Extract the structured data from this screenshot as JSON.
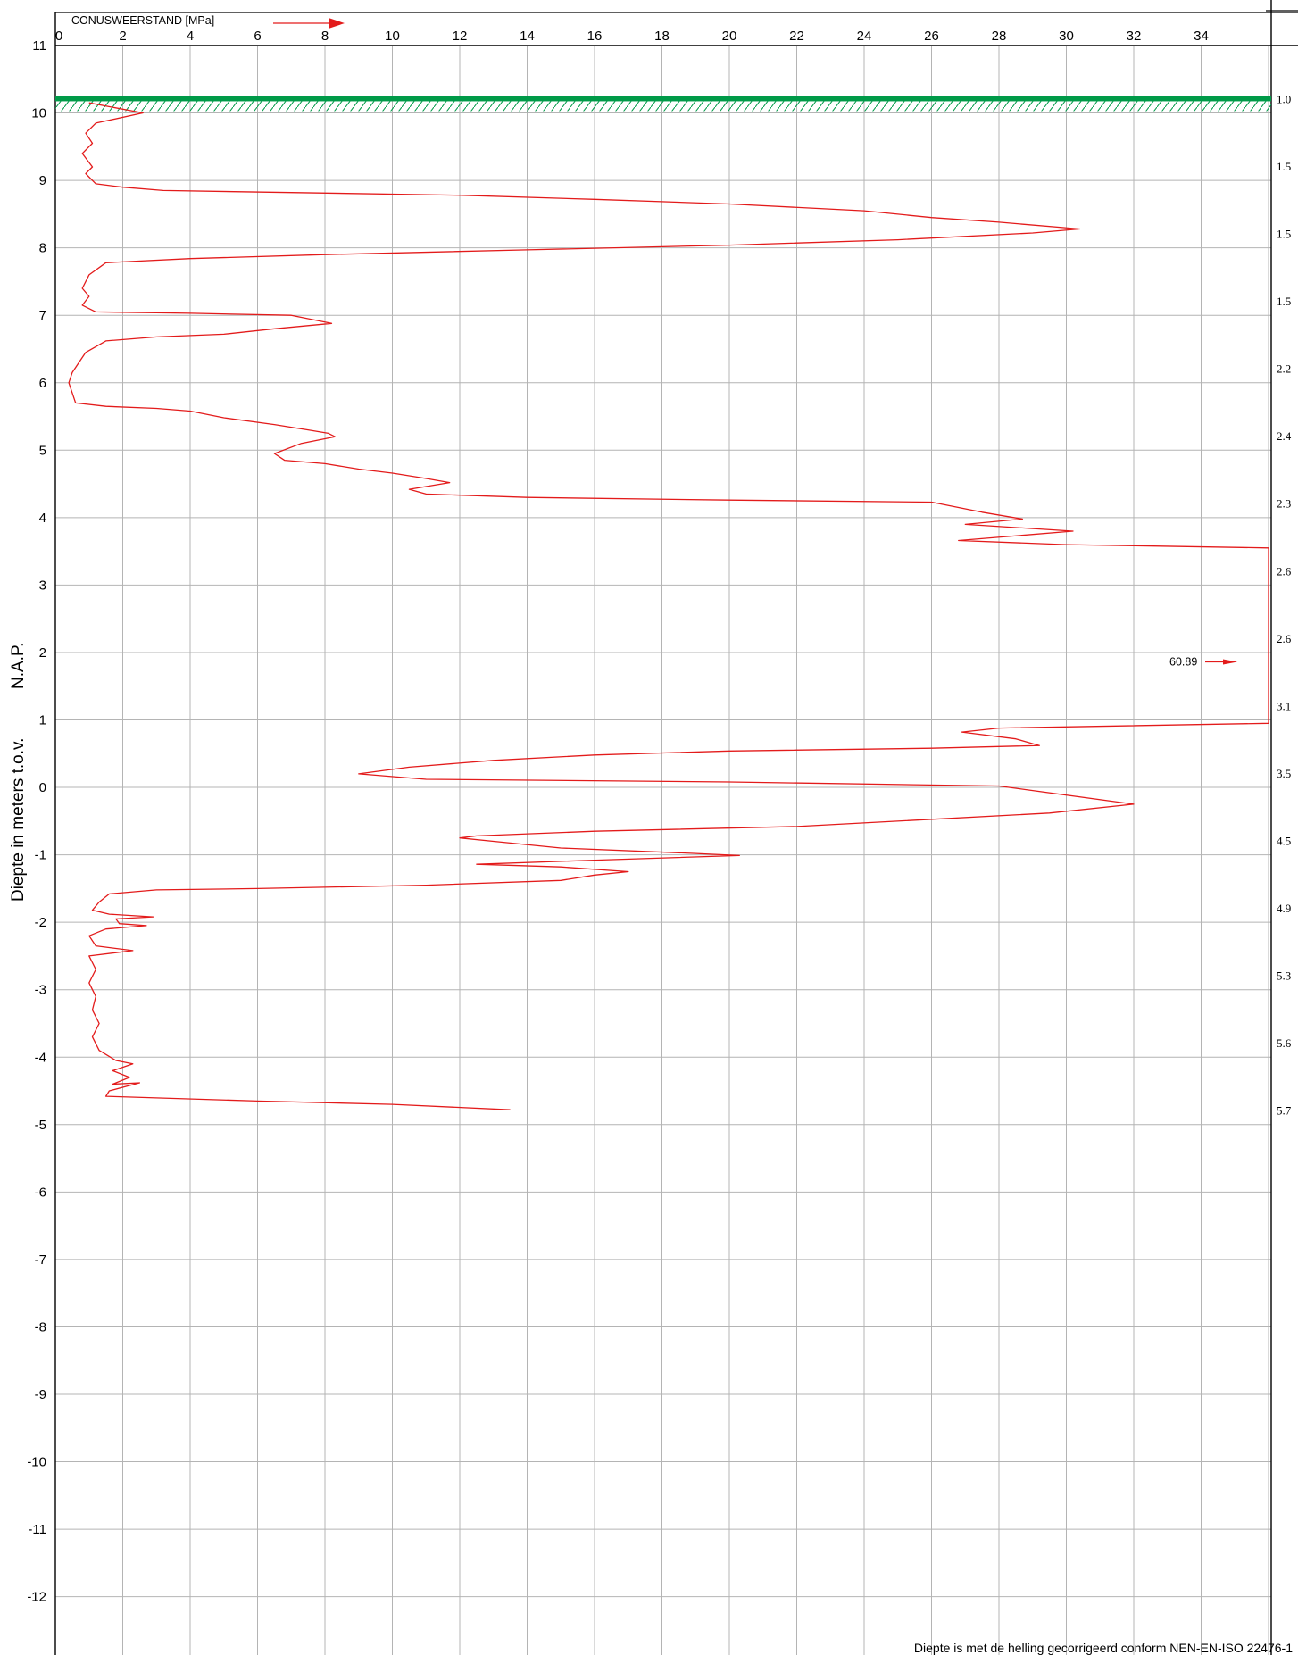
{
  "chart_data": {
    "type": "line",
    "title": "CONUSWEERSTAND [MPa]",
    "ylabel_left": "Diepte in meters t.o.v.",
    "ylabel_right": "N.A.P.",
    "footnote": "Diepte is met de helling gecorrigeerd conform NEN-EN-ISO 22476-1",
    "x_ticks": [
      "0",
      "2",
      "4",
      "6",
      "8",
      "10",
      "12",
      "14",
      "16",
      "18",
      "20",
      "22",
      "24",
      "26",
      "28",
      "30",
      "32",
      "34"
    ],
    "y_ticks": [
      "11",
      "10",
      "9",
      "8",
      "7",
      "6",
      "5",
      "4",
      "3",
      "2",
      "1",
      "0",
      "-1",
      "-2",
      "-3",
      "-4",
      "-5",
      "-6",
      "-7",
      "-8",
      "-9",
      "-10",
      "-11",
      "-12"
    ],
    "xlim": [
      0,
      36
    ],
    "ylim": [
      -13.2,
      11
    ],
    "grid": true,
    "surface_level": 10.2,
    "offscale_label": "60.89",
    "offscale_depth": 1.86,
    "right_labels": [
      {
        "text": "1.0",
        "depth": 10.2
      },
      {
        "text": "1.5",
        "depth": 9.2
      },
      {
        "text": "1.5",
        "depth": 8.2
      },
      {
        "text": "1.5",
        "depth": 7.2
      },
      {
        "text": "2.2",
        "depth": 6.2
      },
      {
        "text": "2.4",
        "depth": 5.2
      },
      {
        "text": "2.3",
        "depth": 4.2
      },
      {
        "text": "2.6",
        "depth": 3.2
      },
      {
        "text": "2.6",
        "depth": 2.2
      },
      {
        "text": "3.1",
        "depth": 1.2
      },
      {
        "text": "3.5",
        "depth": 0.2
      },
      {
        "text": "4.5",
        "depth": -0.8
      },
      {
        "text": "4.9",
        "depth": -1.8
      },
      {
        "text": "5.3",
        "depth": -2.8
      },
      {
        "text": "5.6",
        "depth": -3.8
      },
      {
        "text": "5.7",
        "depth": -4.8
      }
    ],
    "series": [
      {
        "color": "#e31b1b",
        "points": [
          [
            1.0,
            10.15
          ],
          [
            2.6,
            10.0
          ],
          [
            1.2,
            9.85
          ],
          [
            0.9,
            9.7
          ],
          [
            1.1,
            9.55
          ],
          [
            0.8,
            9.4
          ],
          [
            1.1,
            9.2
          ],
          [
            0.9,
            9.1
          ],
          [
            1.2,
            8.95
          ],
          [
            2.0,
            8.9
          ],
          [
            3.2,
            8.85
          ],
          [
            7.0,
            8.82
          ],
          [
            12.0,
            8.78
          ],
          [
            16.0,
            8.72
          ],
          [
            20.0,
            8.65
          ],
          [
            24.0,
            8.55
          ],
          [
            26.0,
            8.45
          ],
          [
            28.0,
            8.38
          ],
          [
            30.4,
            8.28
          ],
          [
            29.0,
            8.22
          ],
          [
            25.0,
            8.12
          ],
          [
            20.0,
            8.04
          ],
          [
            14.0,
            7.97
          ],
          [
            8.0,
            7.9
          ],
          [
            4.0,
            7.84
          ],
          [
            1.5,
            7.78
          ],
          [
            1.0,
            7.6
          ],
          [
            0.8,
            7.4
          ],
          [
            1.0,
            7.28
          ],
          [
            0.8,
            7.15
          ],
          [
            1.2,
            7.05
          ],
          [
            4.0,
            7.03
          ],
          [
            7.0,
            7.0
          ],
          [
            8.2,
            6.88
          ],
          [
            6.5,
            6.8
          ],
          [
            5.0,
            6.72
          ],
          [
            3.0,
            6.68
          ],
          [
            1.5,
            6.62
          ],
          [
            0.9,
            6.45
          ],
          [
            0.7,
            6.3
          ],
          [
            0.5,
            6.15
          ],
          [
            0.4,
            6.0
          ],
          [
            0.5,
            5.85
          ],
          [
            0.6,
            5.7
          ],
          [
            1.5,
            5.65
          ],
          [
            3.0,
            5.62
          ],
          [
            4.0,
            5.58
          ],
          [
            5.0,
            5.48
          ],
          [
            6.5,
            5.38
          ],
          [
            7.5,
            5.3
          ],
          [
            8.1,
            5.25
          ],
          [
            8.3,
            5.2
          ],
          [
            7.3,
            5.1
          ],
          [
            6.5,
            4.95
          ],
          [
            6.8,
            4.85
          ],
          [
            8.0,
            4.8
          ],
          [
            9.0,
            4.72
          ],
          [
            10.0,
            4.66
          ],
          [
            11.0,
            4.58
          ],
          [
            11.7,
            4.52
          ],
          [
            10.5,
            4.42
          ],
          [
            11.0,
            4.35
          ],
          [
            14.0,
            4.3
          ],
          [
            20.0,
            4.26
          ],
          [
            26.0,
            4.23
          ],
          [
            27.5,
            4.08
          ],
          [
            28.7,
            3.98
          ],
          [
            27.0,
            3.9
          ],
          [
            30.2,
            3.8
          ],
          [
            26.8,
            3.66
          ],
          [
            30.0,
            3.6
          ],
          [
            36.0,
            3.55
          ],
          [
            36.0,
            0.95
          ],
          [
            28.0,
            0.88
          ],
          [
            26.9,
            0.82
          ],
          [
            28.5,
            0.72
          ],
          [
            29.2,
            0.62
          ],
          [
            26.0,
            0.58
          ],
          [
            20.0,
            0.54
          ],
          [
            16.0,
            0.48
          ],
          [
            13.0,
            0.4
          ],
          [
            10.5,
            0.3
          ],
          [
            9.0,
            0.2
          ],
          [
            11.0,
            0.12
          ],
          [
            20.0,
            0.08
          ],
          [
            28.0,
            0.02
          ],
          [
            32.0,
            -0.25
          ],
          [
            29.5,
            -0.38
          ],
          [
            22.0,
            -0.58
          ],
          [
            16.0,
            -0.65
          ],
          [
            12.5,
            -0.72
          ],
          [
            12.0,
            -0.75
          ],
          [
            13.0,
            -0.8
          ],
          [
            15.0,
            -0.9
          ],
          [
            19.0,
            -0.98
          ],
          [
            20.3,
            -1.01
          ],
          [
            16.0,
            -1.08
          ],
          [
            12.5,
            -1.14
          ],
          [
            15.0,
            -1.18
          ],
          [
            17.0,
            -1.25
          ],
          [
            16.0,
            -1.3
          ],
          [
            15.0,
            -1.38
          ],
          [
            11.0,
            -1.45
          ],
          [
            6.0,
            -1.5
          ],
          [
            3.0,
            -1.52
          ],
          [
            1.6,
            -1.58
          ],
          [
            1.3,
            -1.7
          ],
          [
            1.1,
            -1.82
          ],
          [
            1.6,
            -1.88
          ],
          [
            2.9,
            -1.92
          ],
          [
            1.8,
            -1.95
          ],
          [
            1.9,
            -2.02
          ],
          [
            2.7,
            -2.05
          ],
          [
            1.5,
            -2.1
          ],
          [
            1.0,
            -2.2
          ],
          [
            1.2,
            -2.35
          ],
          [
            2.3,
            -2.42
          ],
          [
            1.0,
            -2.5
          ],
          [
            1.2,
            -2.7
          ],
          [
            1.0,
            -2.9
          ],
          [
            1.2,
            -3.1
          ],
          [
            1.1,
            -3.3
          ],
          [
            1.3,
            -3.5
          ],
          [
            1.1,
            -3.7
          ],
          [
            1.3,
            -3.9
          ],
          [
            1.8,
            -4.05
          ],
          [
            2.3,
            -4.1
          ],
          [
            1.7,
            -4.2
          ],
          [
            2.2,
            -4.3
          ],
          [
            1.7,
            -4.4
          ],
          [
            2.5,
            -4.38
          ],
          [
            1.6,
            -4.5
          ],
          [
            1.5,
            -4.58
          ],
          [
            6.0,
            -4.65
          ],
          [
            10.0,
            -4.7
          ],
          [
            13.5,
            -4.78
          ]
        ]
      }
    ]
  }
}
